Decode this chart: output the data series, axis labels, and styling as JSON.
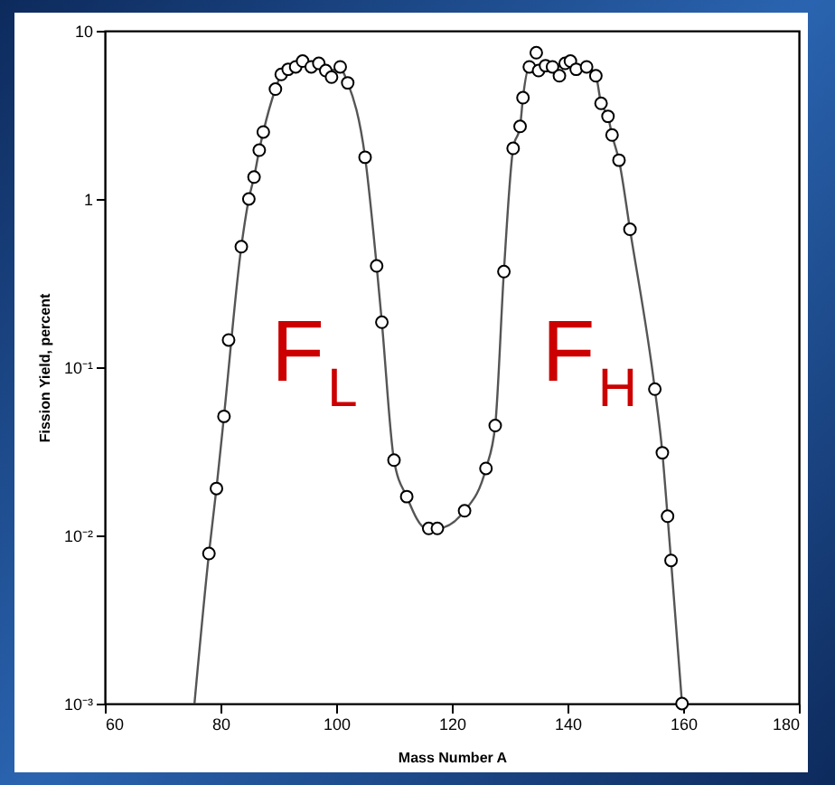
{
  "chart_data": {
    "type": "scatter",
    "xlabel": "Mass Number A",
    "ylabel": "Fission Yield, percent",
    "log": "y",
    "grid": false,
    "xlim": [
      60,
      180
    ],
    "xticks": [
      60,
      80,
      100,
      120,
      140,
      160,
      180
    ],
    "ylim": [
      0.001,
      10
    ],
    "yticks": [
      {
        "value": 0.001,
        "label": "10⁻³"
      },
      {
        "value": 0.01,
        "label": "10⁻²"
      },
      {
        "value": 0.1,
        "label": "10⁻¹"
      },
      1,
      10
    ],
    "annotations": [
      "F$_{L}$",
      "F$_{H}$"
    ],
    "series": [
      {
        "type": "line",
        "marker": "none",
        "line_style": "solid",
        "color": "#555555",
        "x": [
          75.5,
          78,
          79.3,
          80.6,
          83.6,
          84.9,
          85.8,
          86.7,
          87.4,
          89.5,
          90.5,
          91.7,
          93,
          94.2,
          95.7,
          97,
          98.2,
          100.7,
          102,
          105,
          107,
          107.9,
          110,
          112.2,
          115.6,
          117.5,
          122.2,
          125.9,
          127.5,
          129,
          130.6,
          131.8,
          132.3,
          133.4,
          135,
          137.4,
          139.6,
          141.5,
          143.3,
          144.9,
          145.8,
          147,
          147.7,
          148.9,
          150.8,
          155.1,
          156.4,
          157.3,
          157.9,
          159.8
        ],
        "values": [
          0.001,
          0.0078,
          0.019,
          0.051,
          0.52,
          1.0,
          1.35,
          1.95,
          2.5,
          4.5,
          5.5,
          5.9,
          6.1,
          6.4,
          6.1,
          6.2,
          5.8,
          5.9,
          4.9,
          1.77,
          0.4,
          0.185,
          0.028,
          0.017,
          0.011,
          0.011,
          0.014,
          0.025,
          0.045,
          0.37,
          2.0,
          2.7,
          4.0,
          6.1,
          6.2,
          6.1,
          6.2,
          6.2,
          6.1,
          5.4,
          3.7,
          3.1,
          2.4,
          1.7,
          0.66,
          0.074,
          0.031,
          0.013,
          0.0071,
          0.001
        ]
      },
      {
        "marker": "circle",
        "color": "#000000",
        "x": [
          78,
          79.3,
          80.6,
          81.4,
          83.6,
          84.9,
          85.8,
          86.7,
          87.4,
          89.5,
          90.5,
          91.7,
          93,
          94.2,
          95.7,
          97,
          98.2,
          99.2,
          100.7,
          102,
          105,
          107,
          107.9,
          110,
          112.2,
          116,
          117.5,
          122.2,
          125.9,
          127.5,
          129,
          130.6,
          131.8,
          132.3,
          133.4,
          134.6,
          135,
          136.2,
          137.4,
          138.6,
          139.6,
          140.5,
          141.5,
          143.3,
          144.9,
          145.8,
          147,
          147.7,
          148.9,
          150.8,
          155.1,
          156.4,
          157.3,
          157.9,
          159.8
        ],
        "values": [
          0.0078,
          0.019,
          0.051,
          0.145,
          0.52,
          1.0,
          1.35,
          1.95,
          2.5,
          4.5,
          5.5,
          5.9,
          6.1,
          6.6,
          6.1,
          6.4,
          5.8,
          5.3,
          6.1,
          4.9,
          1.77,
          0.4,
          0.185,
          0.028,
          0.017,
          0.011,
          0.011,
          0.014,
          0.025,
          0.045,
          0.37,
          2.0,
          2.7,
          4.0,
          6.1,
          7.4,
          5.8,
          6.2,
          6.1,
          5.4,
          6.4,
          6.6,
          5.9,
          6.1,
          5.4,
          3.7,
          3.1,
          2.4,
          1.7,
          0.66,
          0.074,
          0.031,
          0.013,
          0.0071,
          0.001
        ]
      }
    ]
  }
}
